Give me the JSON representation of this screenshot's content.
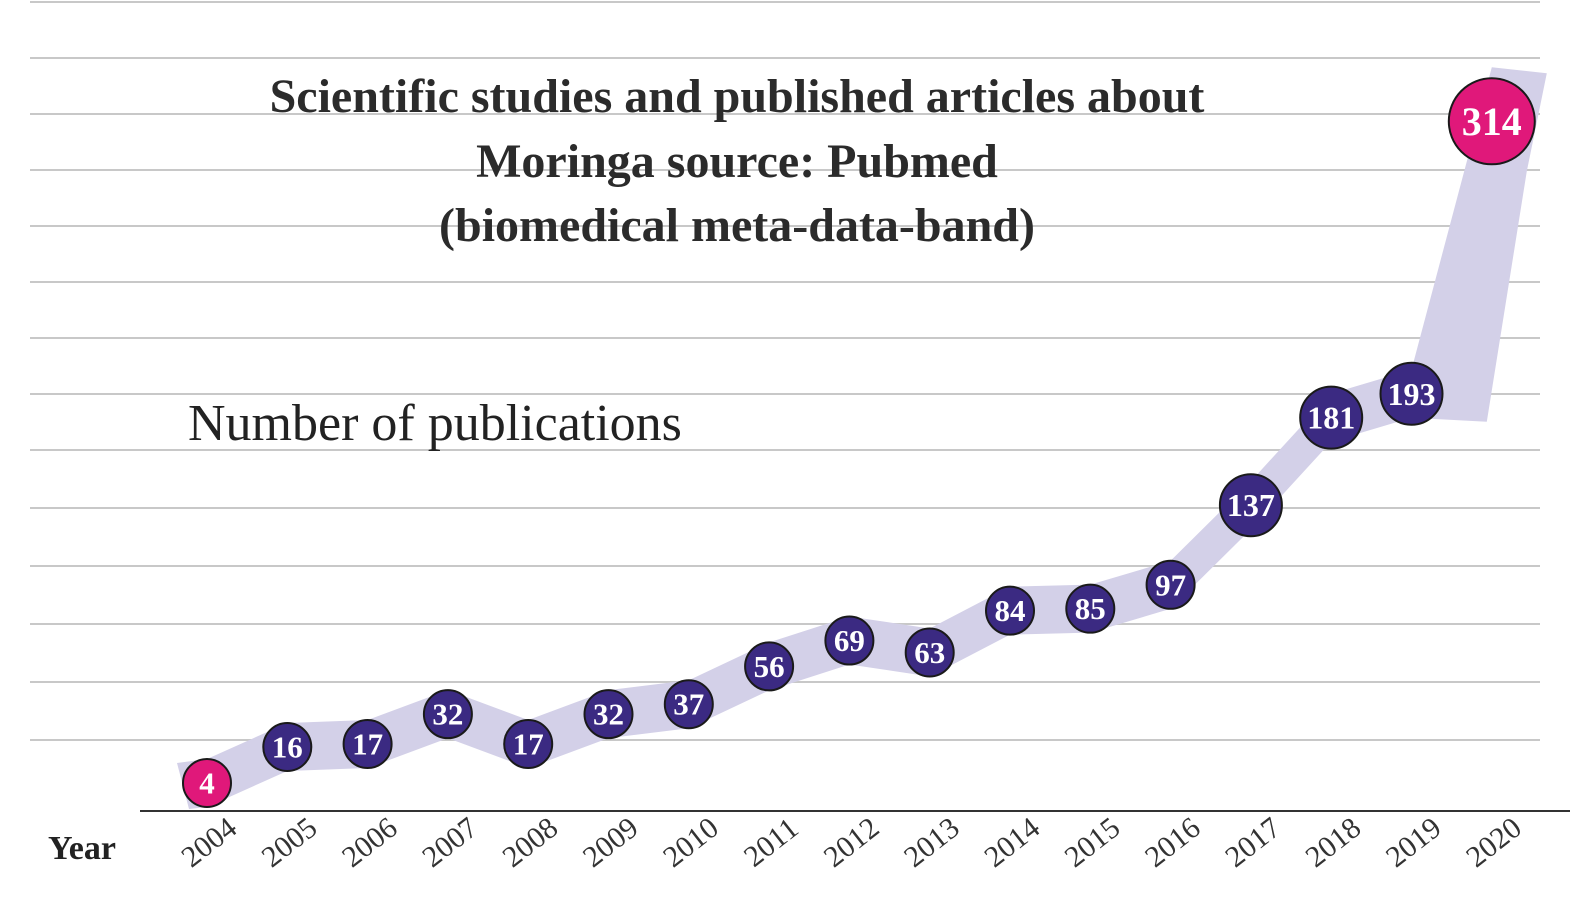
{
  "chart_data": {
    "type": "line",
    "title_lines": [
      "Scientific studies and published articles about",
      "Moringa source: Pubmed",
      "(biomedical meta-data-band)"
    ],
    "ylabel": "Number of publications",
    "xlabel": "Year",
    "categories": [
      "2004",
      "2005",
      "2006",
      "2007",
      "2008",
      "2009",
      "2010",
      "2011",
      "2012",
      "2013",
      "2014",
      "2015",
      "2016",
      "2017",
      "2018",
      "2019",
      "2020"
    ],
    "series": [
      {
        "values": [
          4,
          16,
          17,
          32,
          17,
          32,
          37,
          56,
          69,
          63,
          84,
          85,
          97,
          137,
          181,
          193,
          314
        ]
      }
    ],
    "value_labels": [
      "4",
      "16",
      "17",
      "32",
      "17",
      "32",
      "37",
      "56",
      "69",
      "63",
      "84",
      "85",
      "97",
      "137",
      "181",
      "193",
      "314"
    ],
    "highlighted": [
      "2004",
      "2020"
    ],
    "grid": true,
    "colors": {
      "band": "#d3d0e8",
      "marker": "#3b2a82",
      "highlight": "#e0187a",
      "grid": "#c8c8c8",
      "axis": "#333333"
    }
  }
}
